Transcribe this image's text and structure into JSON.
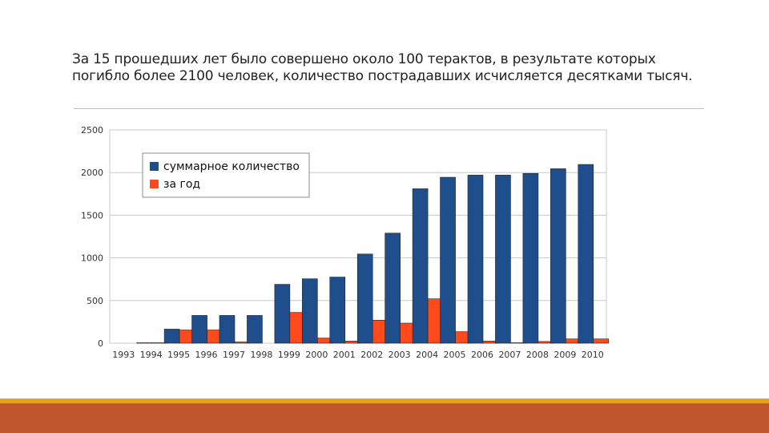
{
  "slide": {
    "body_text": "За 15 прошедших лет было совершено около 100 терактов, в результате которых погибло более 2100 человек, количество пострадавших исчисляется десятками тысяч."
  },
  "colors": {
    "series_total": "#1f4e8c",
    "series_year": "#ff4a1c",
    "footer_accent": "#e4a21a",
    "footer_bar": "#c0562b"
  },
  "chart_data": {
    "type": "bar",
    "title": "",
    "xlabel": "",
    "ylabel": "",
    "ylim": [
      0,
      2500
    ],
    "yticks": [
      0,
      500,
      1000,
      1500,
      2000,
      2500
    ],
    "grid": true,
    "legend_position": "top-left",
    "categories": [
      "1993",
      "1994",
      "1995",
      "1996",
      "1997",
      "1998",
      "1999",
      "2000",
      "2001",
      "2002",
      "2003",
      "2004",
      "2005",
      "2006",
      "2007",
      "2008",
      "2009",
      "2010"
    ],
    "series": [
      {
        "name": "суммарное количество",
        "values": [
          0,
          5,
          165,
          325,
          325,
          325,
          690,
          755,
          775,
          1045,
          1290,
          1810,
          1945,
          1970,
          1970,
          1990,
          2045,
          2095
        ]
      },
      {
        "name": "за год",
        "values": [
          0,
          5,
          155,
          155,
          15,
          0,
          360,
          60,
          25,
          270,
          235,
          520,
          135,
          25,
          5,
          20,
          50,
          50
        ]
      }
    ]
  }
}
